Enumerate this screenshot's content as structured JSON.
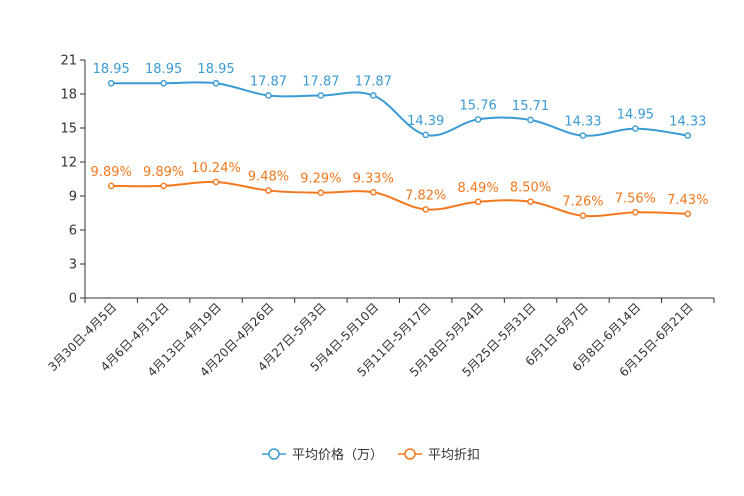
{
  "chart_data": {
    "type": "line",
    "title": "",
    "xlabel": "",
    "ylabel": "",
    "ylim": [
      0,
      21
    ],
    "yticks": [
      0,
      3,
      6,
      9,
      12,
      15,
      18,
      21
    ],
    "categories": [
      "3月30日-4月5日",
      "4月6日-4月12日",
      "4月13日-4月19日",
      "4月20日-4月26日",
      "4月27日-5月3日",
      "5月4日-5月10日",
      "5月11日-5月17日",
      "5月18日-5月24日",
      "5月25日-5月31日",
      "6月1日-6月7日",
      "6月8日-6月14日",
      "6月15日-6月21日"
    ],
    "series": [
      {
        "name": "平均价格（万）",
        "color": "#3a9bd5",
        "values": [
          18.95,
          18.95,
          18.95,
          17.87,
          17.87,
          17.87,
          14.39,
          15.76,
          15.71,
          14.33,
          14.95,
          14.33
        ],
        "labels": [
          "18.95",
          "18.95",
          "18.95",
          "17.87",
          "17.87",
          "17.87",
          "14.39",
          "15.76",
          "15.71",
          "14.33",
          "14.95",
          "14.33"
        ]
      },
      {
        "name": "平均折扣",
        "color": "#f5781e",
        "values": [
          9.89,
          9.89,
          10.24,
          9.48,
          9.29,
          9.33,
          7.82,
          8.49,
          8.5,
          7.26,
          7.56,
          7.43
        ],
        "labels": [
          "9.89%",
          "9.89%",
          "10.24%",
          "9.48%",
          "9.29%",
          "9.33%",
          "7.82%",
          "8.49%",
          "8.50%",
          "7.26%",
          "7.56%",
          "7.43%"
        ]
      }
    ],
    "legend_position": "bottom-center"
  }
}
